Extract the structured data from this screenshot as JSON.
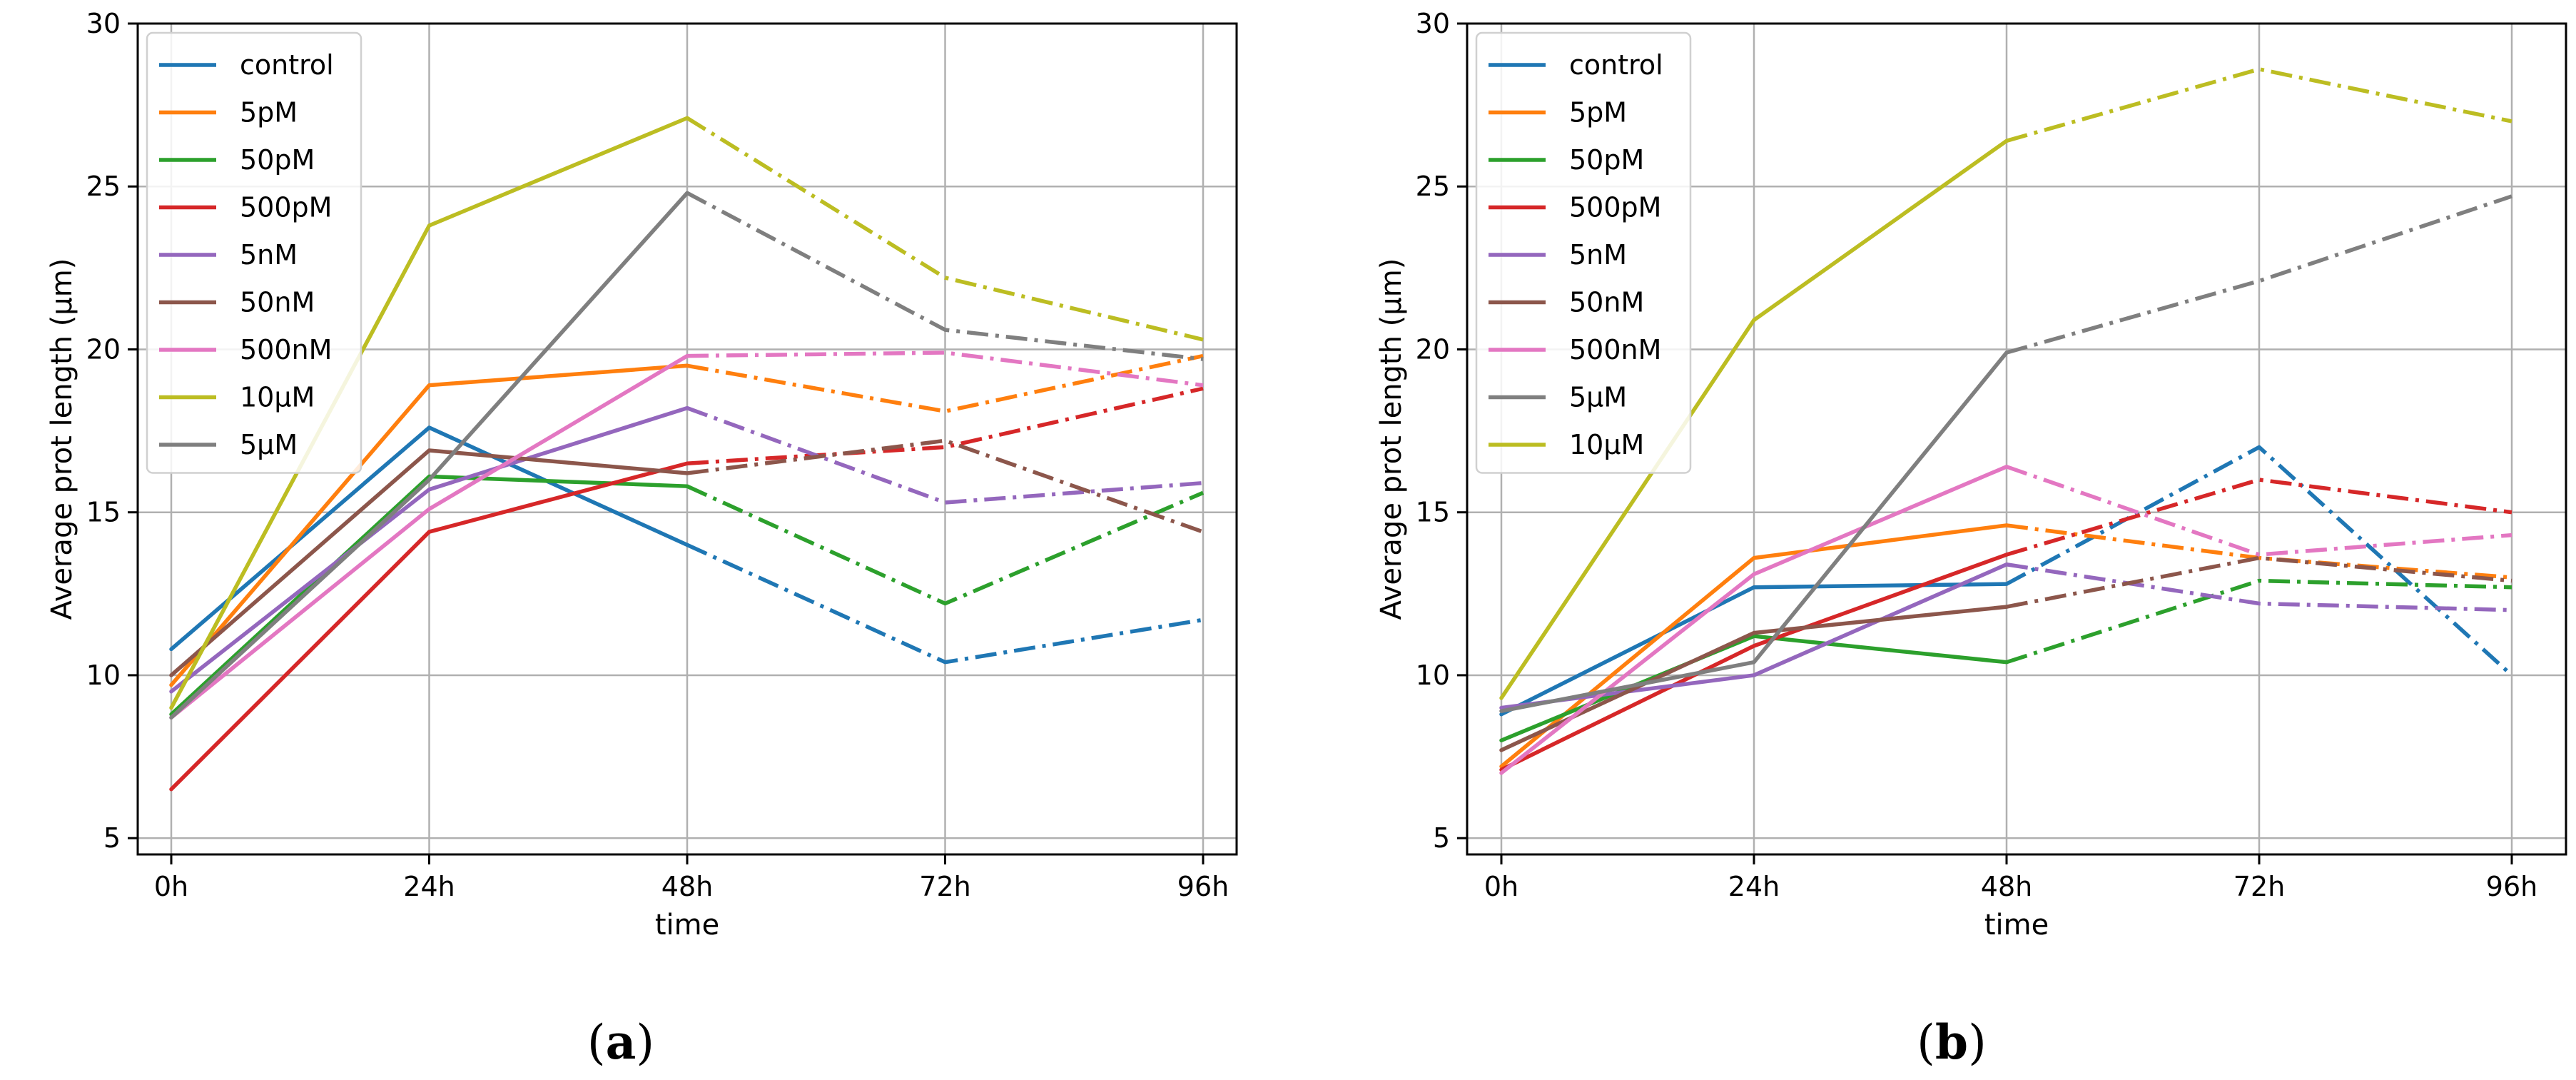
{
  "chart_data": [
    {
      "type": "line",
      "panel_label": [
        "(",
        "a",
        ")"
      ],
      "title": "",
      "xlabel": "time",
      "ylabel": "Average prot length (µm)",
      "categories": [
        "0h",
        "24h",
        "48h",
        "72h",
        "96h"
      ],
      "ylim": [
        4.5,
        30
      ],
      "yticks": [
        5,
        10,
        15,
        20,
        25,
        30
      ],
      "grid": true,
      "legend": "top-left",
      "solid_segments": 2,
      "series": [
        {
          "name": "control",
          "color": "#1f77b4",
          "values": [
            10.8,
            17.6,
            14.0,
            10.4,
            11.7
          ]
        },
        {
          "name": "5pM",
          "color": "#ff7f0e",
          "values": [
            9.7,
            18.9,
            19.5,
            18.1,
            19.8
          ]
        },
        {
          "name": "50pM",
          "color": "#2ca02c",
          "values": [
            8.8,
            16.1,
            15.8,
            12.2,
            15.6
          ]
        },
        {
          "name": "500pM",
          "color": "#d62728",
          "values": [
            6.5,
            14.4,
            16.5,
            17.0,
            18.8
          ]
        },
        {
          "name": "5nM",
          "color": "#9467bd",
          "values": [
            9.5,
            15.7,
            18.2,
            15.3,
            15.9
          ]
        },
        {
          "name": "50nM",
          "color": "#8c564b",
          "values": [
            10.0,
            16.9,
            16.2,
            17.2,
            14.4
          ]
        },
        {
          "name": "500nM",
          "color": "#e377c2",
          "values": [
            8.7,
            15.1,
            19.8,
            19.9,
            18.9
          ]
        },
        {
          "name": "10µM",
          "color": "#bcbd22",
          "values": [
            9.0,
            23.8,
            27.1,
            22.2,
            20.3
          ]
        },
        {
          "name": "5µM",
          "color": "#7f7f7f",
          "values": [
            8.7,
            16.0,
            24.8,
            20.6,
            19.7
          ]
        }
      ]
    },
    {
      "type": "line",
      "panel_label": [
        "(",
        "b",
        ")"
      ],
      "title": "",
      "xlabel": "time",
      "ylabel": "Average prot length (µm)",
      "categories": [
        "0h",
        "24h",
        "48h",
        "72h",
        "96h"
      ],
      "ylim": [
        4.5,
        30
      ],
      "yticks": [
        5,
        10,
        15,
        20,
        25,
        30
      ],
      "grid": true,
      "legend": "top-left",
      "solid_segments": 2,
      "series": [
        {
          "name": "control",
          "color": "#1f77b4",
          "values": [
            8.8,
            12.7,
            12.8,
            17.0,
            10.0
          ]
        },
        {
          "name": "5pM",
          "color": "#ff7f0e",
          "values": [
            7.2,
            13.6,
            14.6,
            13.6,
            13.0
          ]
        },
        {
          "name": "50pM",
          "color": "#2ca02c",
          "values": [
            8.0,
            11.2,
            10.4,
            12.9,
            12.7
          ]
        },
        {
          "name": "500pM",
          "color": "#d62728",
          "values": [
            7.1,
            10.9,
            13.7,
            16.0,
            15.0
          ]
        },
        {
          "name": "5nM",
          "color": "#9467bd",
          "values": [
            9.0,
            10.0,
            13.4,
            12.2,
            12.0
          ]
        },
        {
          "name": "50nM",
          "color": "#8c564b",
          "values": [
            7.7,
            11.3,
            12.1,
            13.6,
            12.9
          ]
        },
        {
          "name": "500nM",
          "color": "#e377c2",
          "values": [
            7.0,
            13.1,
            16.4,
            13.7,
            14.3
          ]
        },
        {
          "name": "5µM",
          "color": "#7f7f7f",
          "values": [
            8.9,
            10.4,
            19.9,
            22.1,
            24.7
          ]
        },
        {
          "name": "10µM",
          "color": "#bcbd22",
          "values": [
            9.3,
            20.9,
            26.4,
            28.6,
            27.0
          ]
        }
      ]
    }
  ]
}
